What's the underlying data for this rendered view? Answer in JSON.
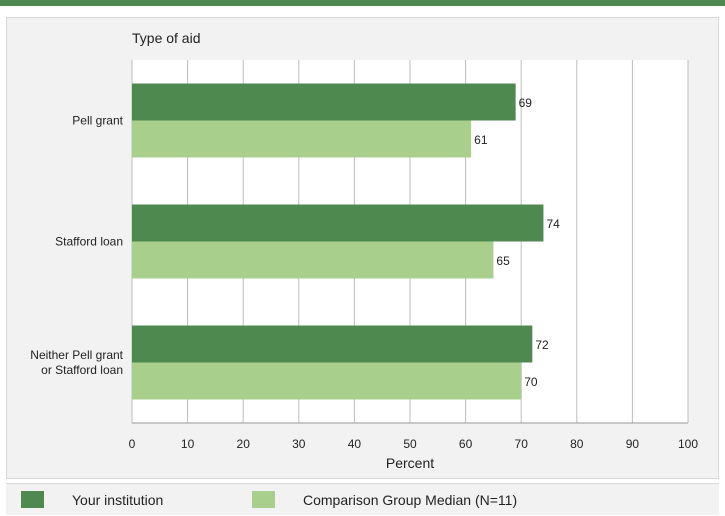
{
  "chart_data": {
    "type": "bar",
    "orientation": "horizontal",
    "title": "Type of aid",
    "xlabel": "Percent",
    "ylabel": "",
    "xlim": [
      0,
      100
    ],
    "xticks": [
      0,
      10,
      20,
      30,
      40,
      50,
      60,
      70,
      80,
      90,
      100
    ],
    "grid": "vertical",
    "legend_position": "bottom",
    "categories": [
      [
        "Pell grant"
      ],
      [
        "Stafford loan"
      ],
      [
        "Neither Pell grant",
        "or Stafford loan"
      ]
    ],
    "series": [
      {
        "name": "Your institution",
        "color": "#4e8a4f",
        "values": [
          69,
          74,
          72
        ]
      },
      {
        "name": "Comparison Group Median (N=11)",
        "color": "#a9cf8c",
        "values": [
          61,
          65,
          70
        ]
      }
    ]
  }
}
